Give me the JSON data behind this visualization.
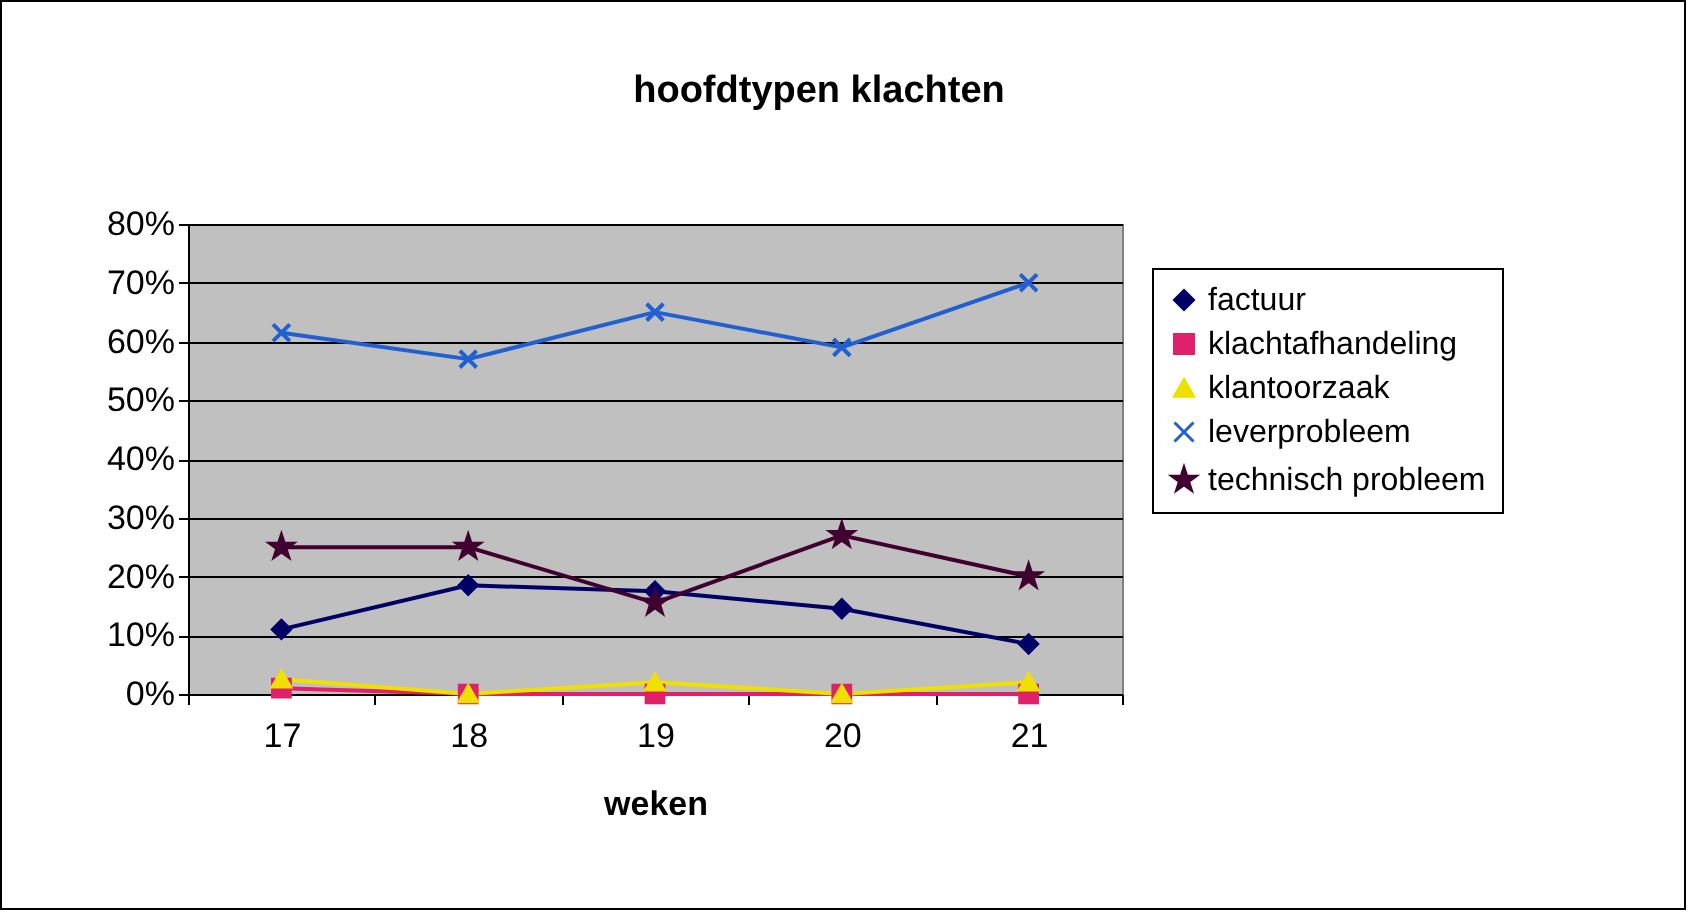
{
  "chart_data": {
    "type": "line",
    "title": "hoofdtypen klachten",
    "xlabel": "weken",
    "categories": [
      "17",
      "18",
      "19",
      "20",
      "21"
    ],
    "ylim": [
      0,
      80
    ],
    "yticks": [
      {
        "value": 0,
        "label": "0%"
      },
      {
        "value": 10,
        "label": "10%"
      },
      {
        "value": 20,
        "label": "20%"
      },
      {
        "value": 30,
        "label": "30%"
      },
      {
        "value": 40,
        "label": "40%"
      },
      {
        "value": 50,
        "label": "50%"
      },
      {
        "value": 60,
        "label": "60%"
      },
      {
        "value": 70,
        "label": "70%"
      },
      {
        "value": 80,
        "label": "80%"
      }
    ],
    "grid": "y",
    "legend": "right",
    "series": [
      {
        "name": "factuur",
        "color": "#000066",
        "marker": "diamond",
        "values": [
          11,
          18.5,
          17.5,
          14.5,
          8.5
        ]
      },
      {
        "name": "klachtafhandeling",
        "color": "#e0206a",
        "marker": "square",
        "values": [
          1,
          0,
          0,
          0,
          0
        ]
      },
      {
        "name": "klantoorzaak",
        "color": "#f0e000",
        "marker": "triangle",
        "values": [
          2.5,
          0,
          2,
          0,
          2
        ]
      },
      {
        "name": "leverprobleem",
        "color": "#2060d0",
        "marker": "cross",
        "values": [
          61.5,
          57,
          65,
          59,
          70
        ]
      },
      {
        "name": "technisch probleem",
        "color": "#400030",
        "marker": "star",
        "values": [
          25,
          25,
          15.5,
          27,
          20
        ]
      }
    ]
  }
}
